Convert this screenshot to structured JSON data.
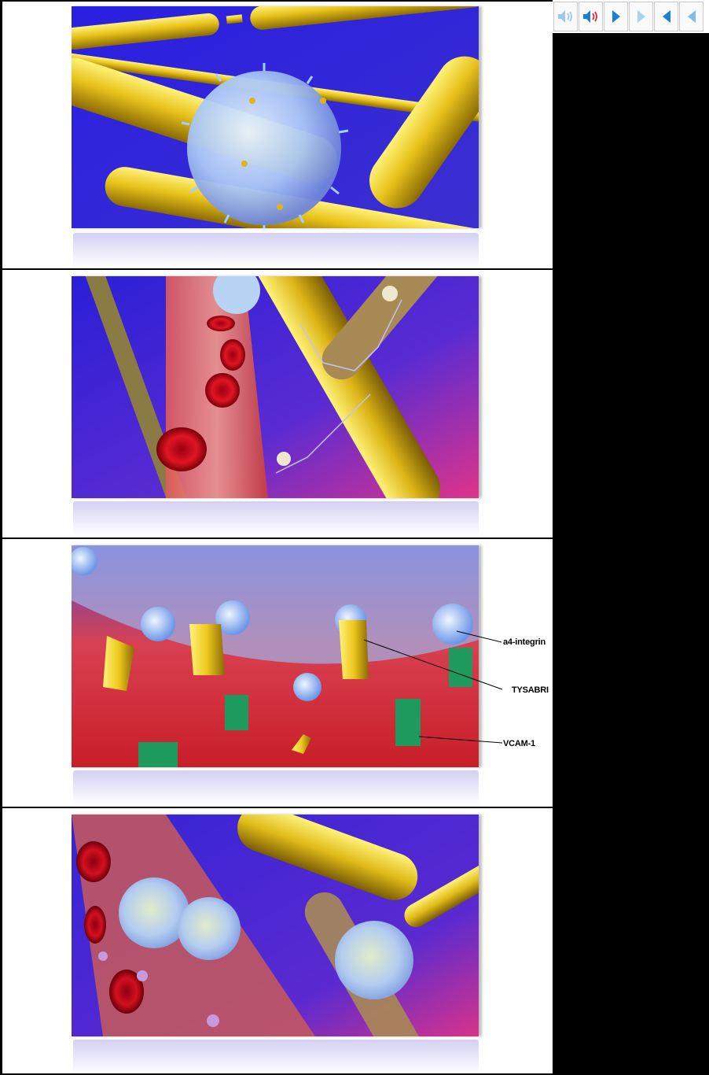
{
  "toolbar": {
    "buttons": [
      {
        "name": "mute-audio",
        "icon": "speaker-muted-icon"
      },
      {
        "name": "play-audio",
        "icon": "speaker-on-icon"
      },
      {
        "name": "next",
        "icon": "play-right-icon"
      },
      {
        "name": "last",
        "icon": "forward-disabled-icon"
      },
      {
        "name": "previous",
        "icon": "play-left-icon"
      },
      {
        "name": "first",
        "icon": "back-disabled-icon"
      }
    ]
  },
  "panels": [
    {
      "scene": "lymphocyte-near-nerve-fibers",
      "labels": []
    },
    {
      "scene": "blood-vessel-with-red-cells-and-nerve",
      "labels": []
    },
    {
      "scene": "integrin-binding-closeup",
      "labels": [
        {
          "id": "a4",
          "text": "a4-integrin"
        },
        {
          "id": "tys",
          "text": "TYSABRI"
        },
        {
          "id": "vcam",
          "text": "VCAM-1"
        }
      ]
    },
    {
      "scene": "lymphocytes-crossing-vessel-wall",
      "labels": []
    }
  ],
  "colors": {
    "accent": "#1a7fd4",
    "background_purple": "#3a2ad8",
    "nerve_yellow": "#e8c21a",
    "vessel_red": "#d8333a",
    "integrin_green": "#1fa36a"
  }
}
